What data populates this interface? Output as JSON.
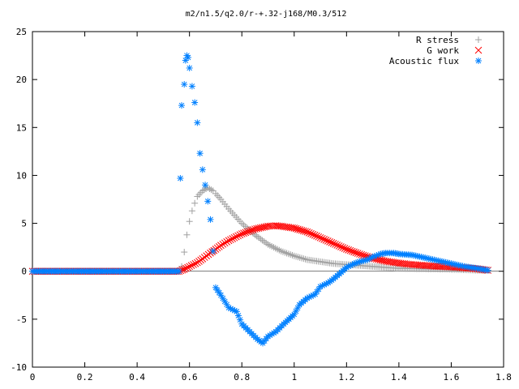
{
  "chart_data": {
    "type": "scatter",
    "title": "m2/n1.5/q2.0/r-+.32-j168/M0.3/512",
    "xlabel": "",
    "ylabel": "",
    "xlim": [
      0,
      1.8
    ],
    "ylim": [
      -10,
      25
    ],
    "x_ticks": [
      "0",
      "0.2",
      "0.4",
      "0.6",
      "0.8",
      "1",
      "1.2",
      "1.4",
      "1.6",
      "1.8"
    ],
    "y_ticks": [
      "-10",
      "-5",
      "0",
      "5",
      "10",
      "15",
      "20",
      "25"
    ],
    "x_tick_values": [
      0,
      0.2,
      0.4,
      0.6,
      0.8,
      1.0,
      1.2,
      1.4,
      1.6,
      1.8
    ],
    "y_tick_values": [
      -10,
      -5,
      0,
      5,
      10,
      15,
      20,
      25
    ],
    "grid": false,
    "legend_position": "top-right",
    "series": [
      {
        "name": "R stress",
        "marker": "plus",
        "color": "#a0a0a0",
        "points": [
          [
            0.0,
            0
          ],
          [
            0.1,
            0
          ],
          [
            0.2,
            0
          ],
          [
            0.3,
            0
          ],
          [
            0.4,
            0
          ],
          [
            0.5,
            0
          ],
          [
            0.56,
            0
          ],
          [
            0.57,
            0.5
          ],
          [
            0.58,
            2.0
          ],
          [
            0.59,
            3.8
          ],
          [
            0.6,
            5.2
          ],
          [
            0.61,
            6.3
          ],
          [
            0.62,
            7.1
          ],
          [
            0.63,
            7.8
          ],
          [
            0.65,
            8.4
          ],
          [
            0.67,
            8.7
          ],
          [
            0.69,
            8.4
          ],
          [
            0.7,
            8.1
          ],
          [
            0.72,
            7.5
          ],
          [
            0.75,
            6.5
          ],
          [
            0.8,
            5.0
          ],
          [
            0.85,
            3.8
          ],
          [
            0.9,
            2.8
          ],
          [
            0.95,
            2.1
          ],
          [
            1.0,
            1.6
          ],
          [
            1.05,
            1.2
          ],
          [
            1.1,
            1.0
          ],
          [
            1.15,
            0.8
          ],
          [
            1.2,
            0.7
          ],
          [
            1.3,
            0.5
          ],
          [
            1.4,
            0.3
          ],
          [
            1.5,
            0.25
          ],
          [
            1.6,
            0.2
          ],
          [
            1.7,
            0.1
          ],
          [
            1.74,
            0.1
          ]
        ]
      },
      {
        "name": "G work",
        "marker": "cross",
        "color": "#ff0000",
        "points": [
          [
            0.0,
            0
          ],
          [
            0.1,
            0
          ],
          [
            0.2,
            0
          ],
          [
            0.3,
            0
          ],
          [
            0.4,
            0
          ],
          [
            0.5,
            0
          ],
          [
            0.56,
            0
          ],
          [
            0.58,
            0.2
          ],
          [
            0.6,
            0.5
          ],
          [
            0.63,
            0.9
          ],
          [
            0.65,
            1.3
          ],
          [
            0.68,
            1.9
          ],
          [
            0.7,
            2.3
          ],
          [
            0.72,
            2.7
          ],
          [
            0.75,
            3.2
          ],
          [
            0.8,
            3.9
          ],
          [
            0.85,
            4.4
          ],
          [
            0.9,
            4.7
          ],
          [
            0.93,
            4.75
          ],
          [
            0.95,
            4.7
          ],
          [
            1.0,
            4.5
          ],
          [
            1.05,
            4.1
          ],
          [
            1.1,
            3.5
          ],
          [
            1.15,
            2.9
          ],
          [
            1.2,
            2.3
          ],
          [
            1.25,
            1.8
          ],
          [
            1.3,
            1.35
          ],
          [
            1.35,
            1.05
          ],
          [
            1.4,
            0.85
          ],
          [
            1.45,
            0.7
          ],
          [
            1.5,
            0.6
          ],
          [
            1.55,
            0.5
          ],
          [
            1.6,
            0.45
          ],
          [
            1.65,
            0.35
          ],
          [
            1.7,
            0.25
          ],
          [
            1.74,
            0.1
          ]
        ]
      },
      {
        "name": "Acoustic flux",
        "marker": "star",
        "color": "#0080ff",
        "points": [
          [
            0.0,
            0
          ],
          [
            0.1,
            0
          ],
          [
            0.2,
            0
          ],
          [
            0.3,
            0
          ],
          [
            0.4,
            0
          ],
          [
            0.5,
            0
          ],
          [
            0.56,
            0
          ],
          [
            0.565,
            9.7
          ],
          [
            0.57,
            17.3
          ],
          [
            0.58,
            19.5
          ],
          [
            0.585,
            22.0
          ],
          [
            0.59,
            22.5
          ],
          [
            0.595,
            22.3
          ],
          [
            0.6,
            21.2
          ],
          [
            0.61,
            19.3
          ],
          [
            0.62,
            17.6
          ],
          [
            0.63,
            15.5
          ],
          [
            0.64,
            12.3
          ],
          [
            0.65,
            10.6
          ],
          [
            0.66,
            9.0
          ],
          [
            0.67,
            7.3
          ],
          [
            0.68,
            5.4
          ],
          [
            0.69,
            2.1
          ],
          [
            0.7,
            -1.7
          ],
          [
            0.72,
            -2.5
          ],
          [
            0.75,
            -3.8
          ],
          [
            0.78,
            -4.2
          ],
          [
            0.8,
            -5.5
          ],
          [
            0.83,
            -6.3
          ],
          [
            0.86,
            -7.1
          ],
          [
            0.88,
            -7.5
          ],
          [
            0.9,
            -6.8
          ],
          [
            0.93,
            -6.3
          ],
          [
            0.96,
            -5.5
          ],
          [
            1.0,
            -4.5
          ],
          [
            1.02,
            -3.5
          ],
          [
            1.05,
            -2.8
          ],
          [
            1.08,
            -2.4
          ],
          [
            1.1,
            -1.6
          ],
          [
            1.13,
            -1.2
          ],
          [
            1.15,
            -0.8
          ],
          [
            1.18,
            -0.1
          ],
          [
            1.2,
            0.4
          ],
          [
            1.23,
            0.8
          ],
          [
            1.25,
            1.0
          ],
          [
            1.28,
            1.2
          ],
          [
            1.3,
            1.5
          ],
          [
            1.33,
            1.8
          ],
          [
            1.35,
            1.9
          ],
          [
            1.38,
            1.9
          ],
          [
            1.4,
            1.8
          ],
          [
            1.45,
            1.7
          ],
          [
            1.5,
            1.4
          ],
          [
            1.55,
            1.1
          ],
          [
            1.6,
            0.8
          ],
          [
            1.65,
            0.5
          ],
          [
            1.7,
            0.3
          ],
          [
            1.74,
            0.1
          ]
        ]
      }
    ]
  }
}
